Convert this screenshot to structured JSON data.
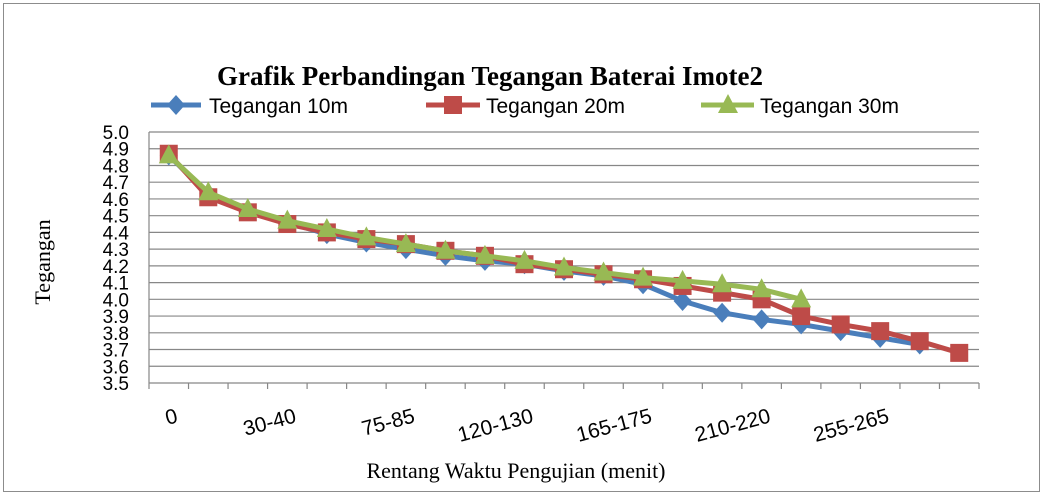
{
  "chart_data": {
    "type": "line",
    "title": "Grafik Perbandingan Tegangan Baterai Imote2",
    "xlabel": "Rentang Waktu Pengujian (menit)",
    "ylabel": "Tegangan",
    "x_tick_labels": [
      "0",
      "30-40",
      "75-85",
      "120-130",
      "165-175",
      "210-220",
      "255-265"
    ],
    "x_tick_label_indices": [
      0,
      3,
      6,
      9,
      12,
      15,
      18
    ],
    "num_points": 21,
    "ylim": [
      3.5,
      5.0
    ],
    "yticks": [
      "3.5",
      "3.6",
      "3.7",
      "3.8",
      "3.9",
      "4.0",
      "4.1",
      "4.2",
      "4.3",
      "4.4",
      "4.5",
      "4.6",
      "4.7",
      "4.8",
      "4.9",
      "5.0"
    ],
    "grid": "horizontal",
    "legend_position": "top",
    "series": [
      {
        "name": "Tegangan 10m",
        "color": "#4a7ebb",
        "marker": "diamond",
        "values": [
          4.86,
          4.63,
          4.53,
          4.46,
          4.39,
          4.34,
          4.3,
          4.26,
          4.23,
          4.21,
          4.17,
          4.14,
          4.09,
          3.99,
          3.92,
          3.88,
          3.85,
          3.81,
          3.77,
          3.73
        ]
      },
      {
        "name": "Tegangan 20m",
        "color": "#be4b48",
        "marker": "square",
        "values": [
          4.87,
          4.61,
          4.52,
          4.45,
          4.4,
          4.36,
          4.33,
          4.29,
          4.26,
          4.21,
          4.18,
          4.15,
          4.12,
          4.08,
          4.04,
          4.0,
          3.9,
          3.85,
          3.81,
          3.75,
          3.68
        ]
      },
      {
        "name": "Tegangan 30m",
        "color": "#98b954",
        "marker": "triangle",
        "values": [
          4.86,
          4.64,
          4.54,
          4.47,
          4.42,
          4.37,
          4.33,
          4.29,
          4.26,
          4.23,
          4.19,
          4.16,
          4.13,
          4.11,
          4.09,
          4.06,
          4.0
        ]
      }
    ]
  }
}
